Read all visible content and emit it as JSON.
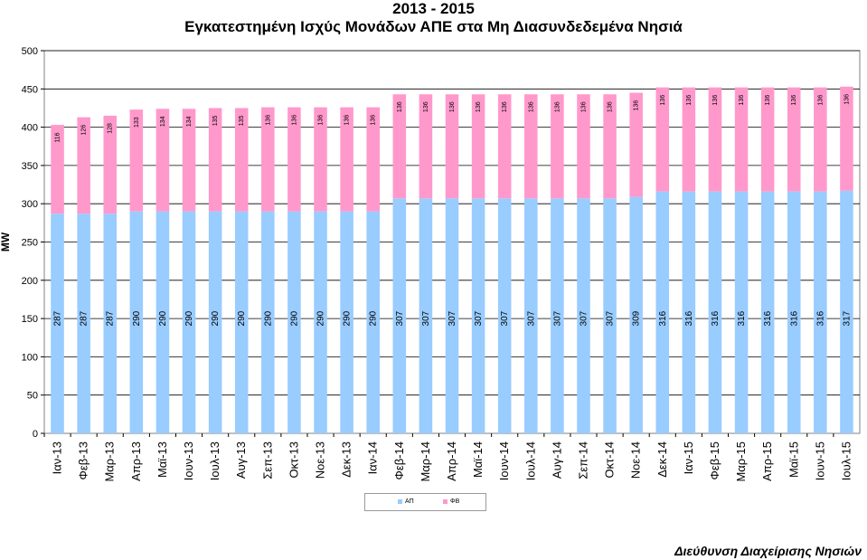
{
  "chart_data": {
    "type": "bar",
    "stacked": true,
    "title": "2013 - 2015",
    "subtitle": "Εγκατεστημένη Ισχύς Μονάδων ΑΠΕ στα Μη Διασυνδεδεμένα Νησιά",
    "ylabel": "MW",
    "xlabel": "",
    "ylim": [
      0,
      500
    ],
    "yticks": [
      0,
      50,
      100,
      150,
      200,
      250,
      300,
      350,
      400,
      450,
      500
    ],
    "grid": true,
    "legend_position": "bottom",
    "categories": [
      "Ιαν-13",
      "Φεβ-13",
      "Μαρ-13",
      "Απρ-13",
      "Μαϊ-13",
      "Ιουν-13",
      "Ιουλ-13",
      "Αυγ-13",
      "Σεπ-13",
      "Οκτ-13",
      "Νοε-13",
      "Δεκ-13",
      "Ιαν-14",
      "Φεβ-14",
      "Μαρ-14",
      "Απρ-14",
      "Μαϊ-14",
      "Ιουν-14",
      "Ιουλ-14",
      "Αυγ-14",
      "Σεπ-14",
      "Οκτ-14",
      "Νοε-14",
      "Δεκ-14",
      "Ιαν-15",
      "Φεβ-15",
      "Μαρ-15",
      "Απρ-15",
      "Μαϊ-15",
      "Ιουν-15",
      "Ιουλ-15"
    ],
    "series": [
      {
        "name": "ΑΠ",
        "color": "#99ccff",
        "values": [
          287,
          287,
          287,
          290,
          290,
          290,
          290,
          290,
          290,
          290,
          290,
          290,
          290,
          307,
          307,
          307,
          307,
          307,
          307,
          307,
          307,
          307,
          309,
          316,
          316,
          316,
          316,
          316,
          316,
          316,
          317
        ]
      },
      {
        "name": "ΦΒ",
        "color": "#ff99cc",
        "values": [
          116,
          126,
          128,
          133,
          134,
          134,
          135,
          135,
          136,
          136,
          136,
          136,
          136,
          136,
          136,
          136,
          136,
          136,
          136,
          136,
          136,
          136,
          136,
          136,
          136,
          136,
          136,
          136,
          136,
          136,
          136
        ]
      }
    ]
  },
  "footer": "Διεύθυνση Διαχείρισης Νησιών"
}
